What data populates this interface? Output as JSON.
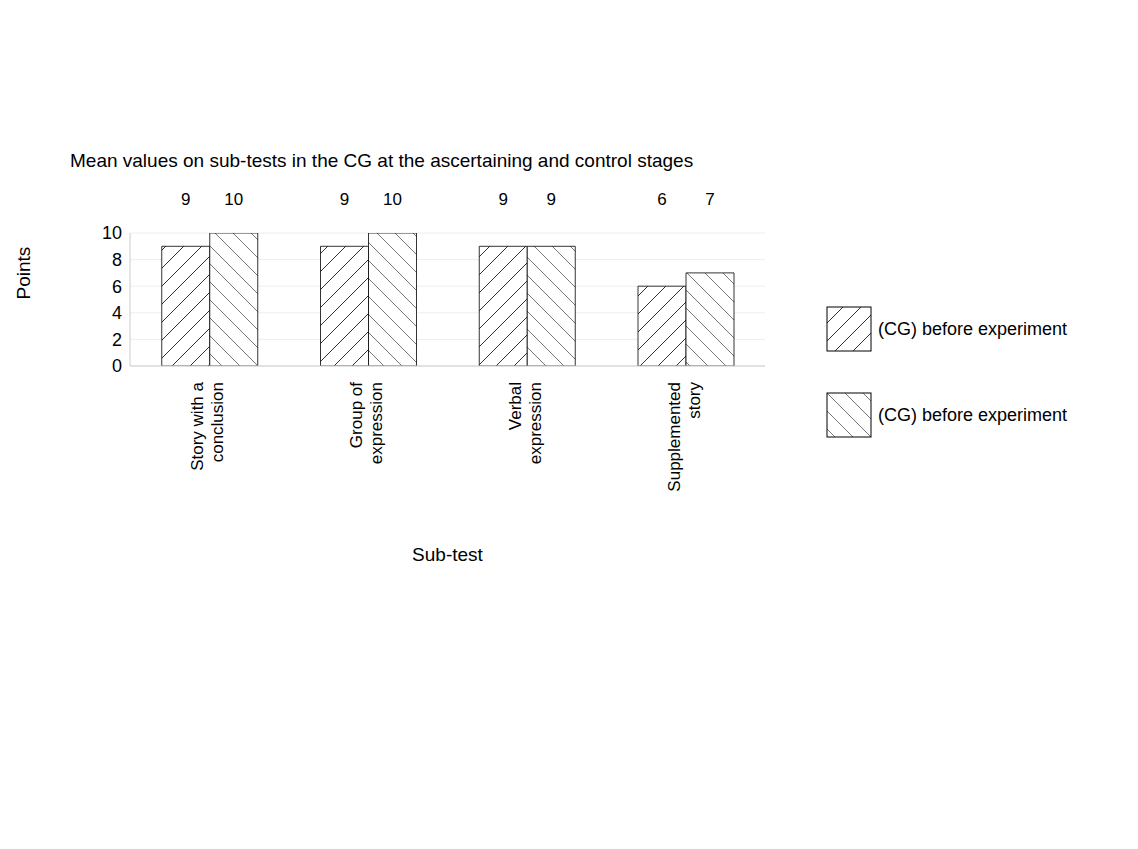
{
  "chart_data": {
    "type": "bar",
    "title": "Mean values on sub-tests in the CG at the ascertaining and control stages",
    "x_label": "Sub-test",
    "y_label": "Points",
    "categories": [
      "Story with a conclusion",
      "Group of expression",
      "Verbal expression",
      "Supplemented story"
    ],
    "series": [
      {
        "name": "(CG) before experiment",
        "color": "#333333",
        "values": [
          9,
          9,
          9,
          6
        ]
      },
      {
        "name": "(CG) before experiment",
        "color": "#777777",
        "values": [
          10,
          10,
          9,
          7
        ]
      }
    ],
    "ylim": [
      0,
      10
    ],
    "yticks": [
      0,
      2,
      4,
      6,
      8,
      10
    ],
    "grid": true,
    "legend": "right",
    "data_labels": true
  }
}
